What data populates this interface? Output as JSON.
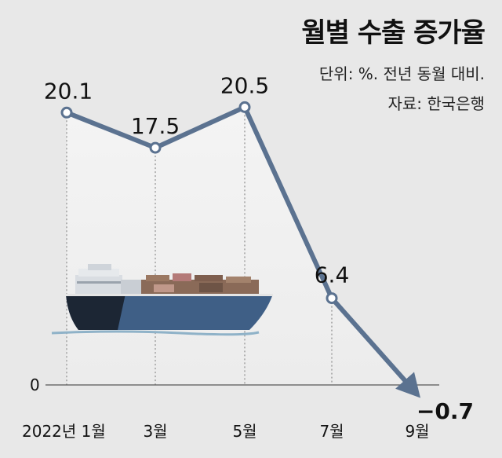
{
  "title": "월별 수출 증가율",
  "unit_note": "단위: %. 전년 동월 대비.",
  "source": "자료: 한국은행",
  "chart_data": {
    "type": "line",
    "title": "월별 수출 증가율",
    "x": [
      "2022년 1월",
      "3월",
      "5월",
      "7월",
      "9월"
    ],
    "series": [
      {
        "values": [
          20.1,
          17.5,
          20.5,
          6.4,
          -0.7
        ]
      }
    ],
    "data_labels": [
      "20.1",
      "17.5",
      "20.5",
      "6.4",
      "−0.7"
    ],
    "y_ticks": [
      0
    ],
    "y_tick_labels": [
      "0"
    ],
    "ylim": [
      -2,
      26
    ],
    "grid": false,
    "line_color": "#5b7290",
    "marker_fill": "#ffffff",
    "end_arrow": true
  },
  "illustration": "container-ship"
}
